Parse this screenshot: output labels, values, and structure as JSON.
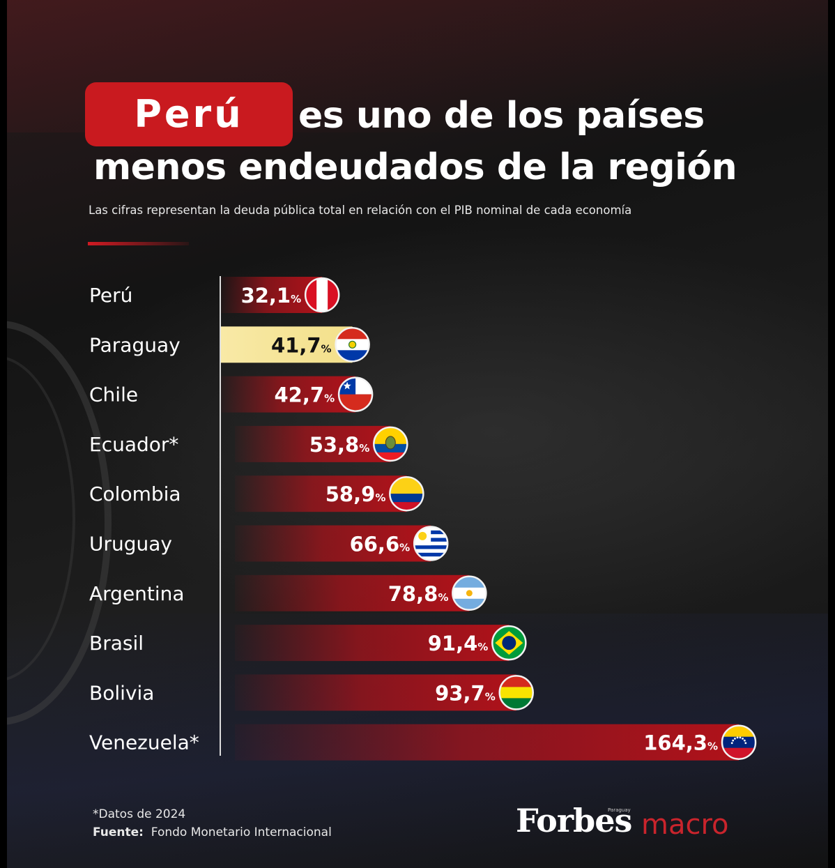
{
  "title": {
    "highlight": "Perú",
    "line1": "es uno de los países",
    "line2": "menos endeudados de la región"
  },
  "subtitle": "Las cifras representan la deuda pública total en relación con el PIB nominal de cada economía",
  "colors": {
    "accent_red": "#c91a1f",
    "bar_red": "#b0121a",
    "highlight_gold": "#f3e08a"
  },
  "chart_data": {
    "type": "bar",
    "orientation": "horizontal",
    "categories": [
      "Perú",
      "Paraguay",
      "Chile",
      "Ecuador*",
      "Colombia",
      "Uruguay",
      "Argentina",
      "Brasil",
      "Bolivia",
      "Venezuela*"
    ],
    "values": [
      32.1,
      41.7,
      42.7,
      53.8,
      58.9,
      66.6,
      78.8,
      91.4,
      93.7,
      164.3
    ],
    "value_labels": [
      "32,1",
      "41,7",
      "42,7",
      "53,8",
      "58,9",
      "66,6",
      "78,8",
      "91,4",
      "93,7",
      "164,3"
    ],
    "unit": "%",
    "highlighted_category": "Paraguay",
    "flag_icons": [
      "peru-flag-icon",
      "paraguay-flag-icon",
      "chile-flag-icon",
      "ecuador-flag-icon",
      "colombia-flag-icon",
      "uruguay-flag-icon",
      "argentina-flag-icon",
      "brazil-flag-icon",
      "bolivia-flag-icon",
      "venezuela-flag-icon"
    ],
    "xlim": [
      0,
      164.3
    ],
    "grid": false
  },
  "footnote": {
    "data_note": "*Datos de 2024",
    "source_label": "Fuente:",
    "source_value": "Fondo Monetario Internacional"
  },
  "logo": {
    "brand": "Forbes",
    "brand_sub": "Paraguay",
    "section": "macro"
  }
}
